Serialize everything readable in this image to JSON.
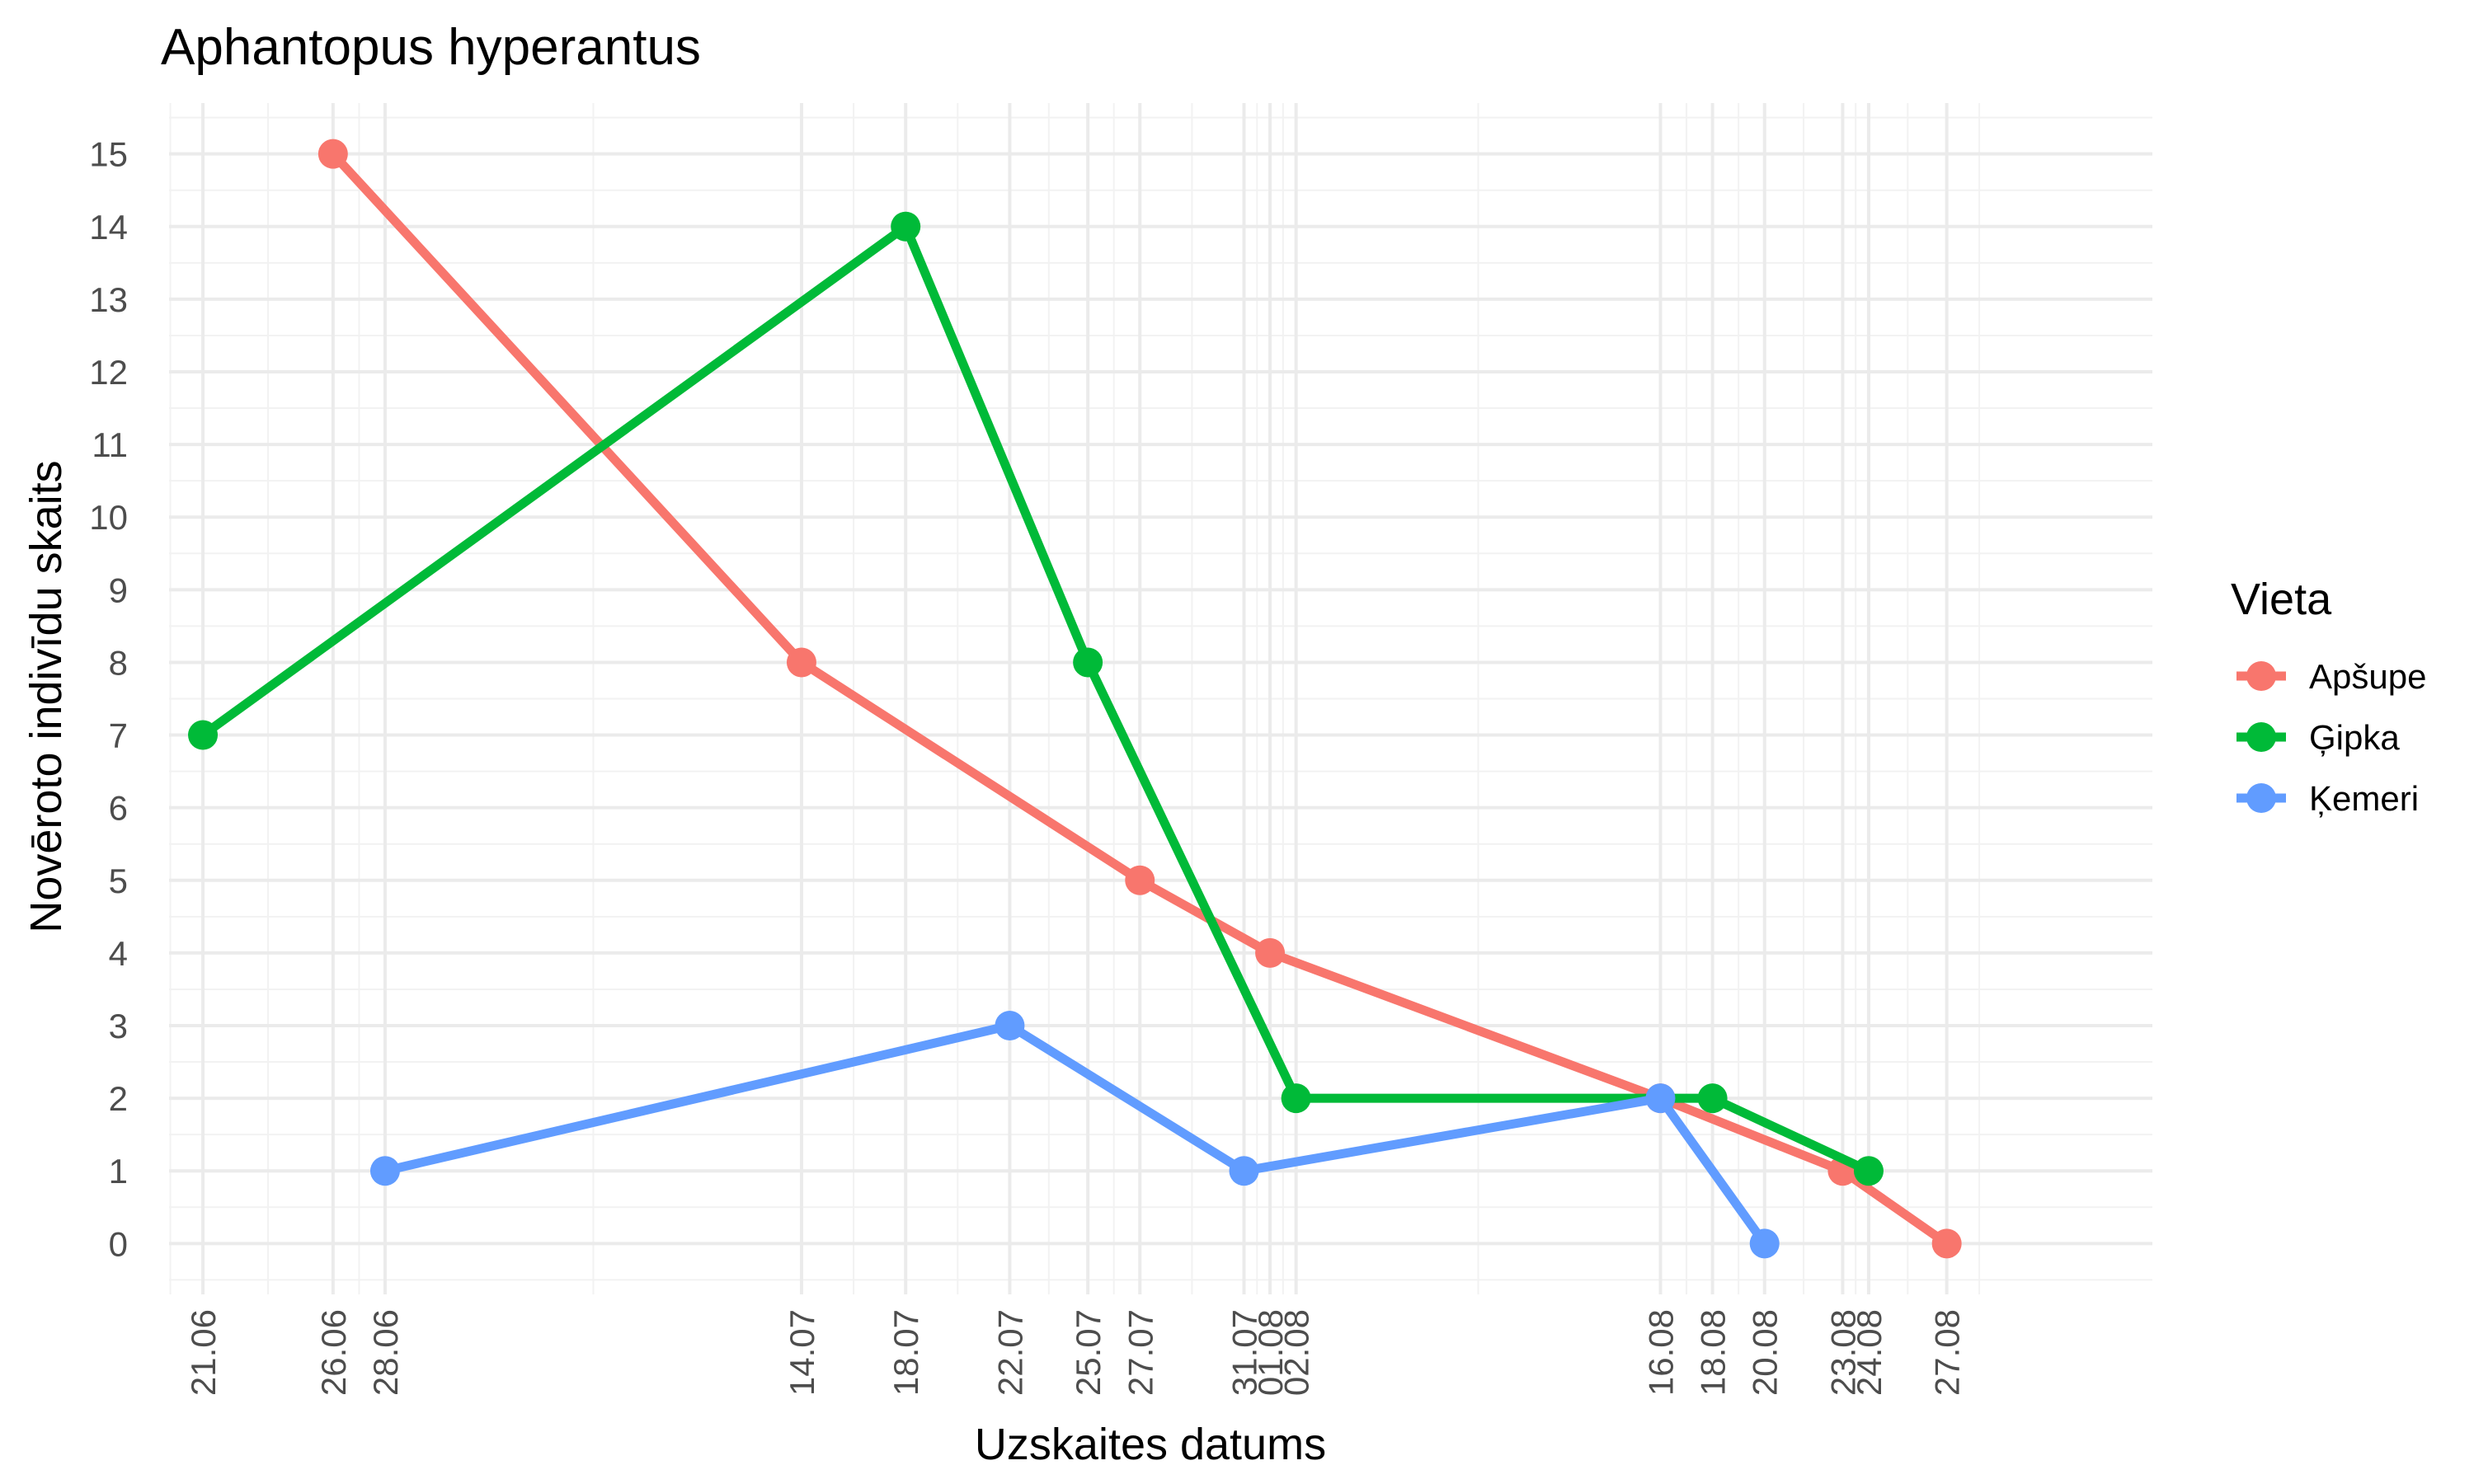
{
  "chart_data": {
    "type": "line",
    "title": "Aphantopus hyperantus",
    "xlabel": "Uzskaites datums",
    "ylabel": "Novēroto indivīdu skaits",
    "x_ticks": [
      "21.06",
      "26.06",
      "28.06",
      "14.07",
      "18.07",
      "22.07",
      "25.07",
      "27.07",
      "31.07",
      "01.08",
      "02.08",
      "16.08",
      "18.08",
      "20.08",
      "23.08",
      "24.08",
      "27.08"
    ],
    "y_ticks": [
      0,
      1,
      2,
      3,
      4,
      5,
      6,
      7,
      8,
      9,
      10,
      11,
      12,
      13,
      14,
      15
    ],
    "ylim": [
      -0.7,
      15.7
    ],
    "grid": true,
    "legend": {
      "title": "Vieta",
      "position": "right"
    },
    "series": [
      {
        "name": "Apšupe",
        "color": "#F8766D",
        "points": [
          {
            "x": "26.06",
            "y": 15
          },
          {
            "x": "14.07",
            "y": 8
          },
          {
            "x": "27.07",
            "y": 5
          },
          {
            "x": "01.08",
            "y": 4
          },
          {
            "x": "16.08",
            "y": 2
          },
          {
            "x": "23.08",
            "y": 1
          },
          {
            "x": "27.08",
            "y": 0
          }
        ]
      },
      {
        "name": "Ģipka",
        "color": "#00BA38",
        "points": [
          {
            "x": "21.06",
            "y": 7
          },
          {
            "x": "18.07",
            "y": 14
          },
          {
            "x": "25.07",
            "y": 8
          },
          {
            "x": "02.08",
            "y": 2
          },
          {
            "x": "18.08",
            "y": 2
          },
          {
            "x": "24.08",
            "y": 1
          }
        ]
      },
      {
        "name": "Ķemeri",
        "color": "#619CFF",
        "points": [
          {
            "x": "28.06",
            "y": 1
          },
          {
            "x": "22.07",
            "y": 3
          },
          {
            "x": "31.07",
            "y": 1
          },
          {
            "x": "16.08",
            "y": 2
          },
          {
            "x": "20.08",
            "y": 0
          }
        ]
      }
    ]
  }
}
